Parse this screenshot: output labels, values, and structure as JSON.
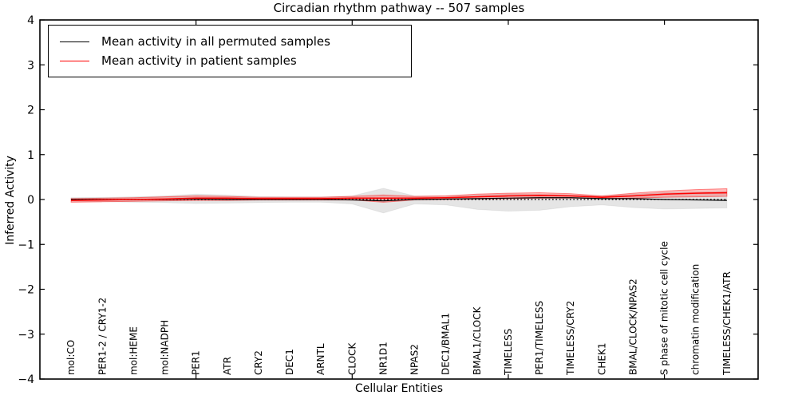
{
  "figure": {
    "title": "Circadian rhythm pathway -- 507 samples",
    "xlabel": "Cellular Entities",
    "ylabel": "Inferred Activity"
  },
  "legend": {
    "position": "upper left",
    "items": [
      {
        "label": "Mean activity in all permuted samples",
        "color": "#000000"
      },
      {
        "label": "Mean activity in patient samples",
        "color": "#ff0000"
      }
    ]
  },
  "chart_data": {
    "type": "line",
    "title": "Circadian rhythm pathway -- 507 samples",
    "xlabel": "Cellular Entities",
    "ylabel": "Inferred Activity",
    "ylim": [
      -4,
      4
    ],
    "yticks": [
      -4,
      -3,
      -2,
      -1,
      0,
      1,
      2,
      3,
      4
    ],
    "xlim": [
      0,
      23
    ],
    "xticks_numeric": [
      5,
      10,
      15,
      20
    ],
    "grid": false,
    "legend_position": "upper left",
    "zero_reference_line": 0,
    "categories": [
      "mol:CO",
      "PER1-2 / CRY1-2",
      "mol:HEME",
      "mol:NADPH",
      "PER1",
      "ATR",
      "CRY2",
      "DEC1",
      "ARNTL",
      "CLOCK",
      "NR1D1",
      "NPAS2",
      "DEC1/BMAL1",
      "BMAL1/CLOCK",
      "TIMELESS",
      "PER1/TIMELESS",
      "TIMELESS/CRY2",
      "CHEK1",
      "BMAL/CLOCK/NPAS2",
      "S phase of mitotic cell cycle",
      "chromatin modification",
      "TIMELESS/CHEK1/ATR"
    ],
    "series": [
      {
        "name": "Mean activity in all permuted samples",
        "color": "#000000",
        "values": [
          0.0,
          0.0,
          0.0,
          0.0,
          0.01,
          0.0,
          0.0,
          0.0,
          0.0,
          -0.01,
          -0.03,
          0.0,
          0.01,
          0.02,
          0.03,
          0.04,
          0.04,
          0.02,
          0.02,
          0.0,
          -0.01,
          -0.02
        ]
      },
      {
        "name": "Mean activity in patient samples",
        "color": "#ff0000",
        "values": [
          -0.02,
          -0.01,
          0.0,
          0.01,
          0.03,
          0.03,
          0.02,
          0.02,
          0.02,
          0.03,
          0.03,
          0.03,
          0.04,
          0.06,
          0.08,
          0.09,
          0.08,
          0.05,
          0.08,
          0.12,
          0.14,
          0.15
        ]
      }
    ],
    "bands": [
      {
        "name": "permuted-samples-range",
        "fill": "rgba(0,0,0,0.10)",
        "edge": "rgba(0,0,0,0.06)",
        "upper": [
          0.04,
          0.05,
          0.06,
          0.08,
          0.12,
          0.1,
          0.07,
          0.06,
          0.06,
          0.08,
          0.25,
          0.08,
          0.08,
          0.1,
          0.12,
          0.12,
          0.1,
          0.08,
          0.12,
          0.16,
          0.17,
          0.18
        ],
        "lower": [
          -0.04,
          -0.05,
          -0.06,
          -0.07,
          -0.09,
          -0.08,
          -0.07,
          -0.06,
          -0.06,
          -0.1,
          -0.3,
          -0.1,
          -0.12,
          -0.22,
          -0.26,
          -0.24,
          -0.16,
          -0.12,
          -0.18,
          -0.21,
          -0.2,
          -0.19
        ]
      },
      {
        "name": "patient-samples-range",
        "fill": "rgba(255,0,0,0.25)",
        "edge": "rgba(255,0,0,0.45)",
        "upper": [
          0.02,
          0.03,
          0.04,
          0.06,
          0.08,
          0.07,
          0.05,
          0.05,
          0.05,
          0.07,
          0.1,
          0.07,
          0.08,
          0.12,
          0.14,
          0.15,
          0.13,
          0.08,
          0.14,
          0.19,
          0.22,
          0.24
        ],
        "lower": [
          -0.06,
          -0.05,
          -0.04,
          -0.03,
          -0.02,
          -0.02,
          -0.01,
          -0.01,
          -0.01,
          -0.01,
          -0.06,
          -0.01,
          0.0,
          0.01,
          0.02,
          0.03,
          0.03,
          0.02,
          0.03,
          0.05,
          0.06,
          0.07
        ]
      }
    ]
  }
}
